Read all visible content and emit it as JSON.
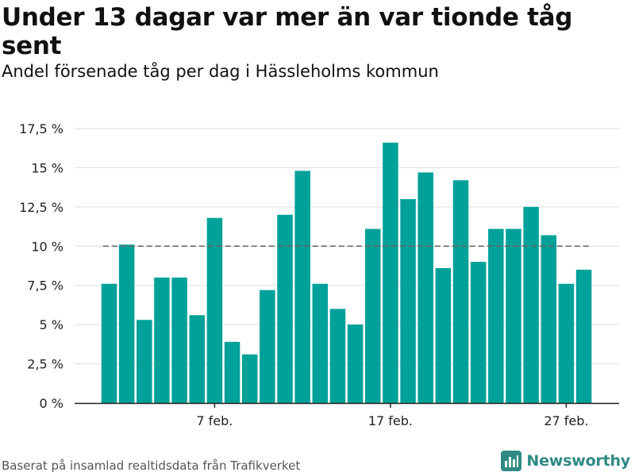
{
  "title": "Under 13 dagar var mer än var tionde tåg sent",
  "subtitle": "Andel försenade tåg per dag i Hässleholms kommun",
  "footer": {
    "source": "Baserat på insamlad realtidsdata från Trafikverket",
    "logo_text": "Newsworthy"
  },
  "colors": {
    "bar": "#00a199",
    "reference_line": "#666666",
    "grid": "#dddddd",
    "logo": "#2f8a84"
  },
  "chart_data": {
    "type": "bar",
    "categories": [
      "1 feb.",
      "2 feb.",
      "3 feb.",
      "4 feb.",
      "5 feb.",
      "6 feb.",
      "7 feb.",
      "8 feb.",
      "9 feb.",
      "10 feb.",
      "11 feb.",
      "12 feb.",
      "13 feb.",
      "14 feb.",
      "15 feb.",
      "16 feb.",
      "17 feb.",
      "18 feb.",
      "19 feb.",
      "20 feb.",
      "21 feb.",
      "22 feb.",
      "23 feb.",
      "24 feb.",
      "25 feb.",
      "26 feb.",
      "27 feb.",
      "28 feb."
    ],
    "values": [
      7.6,
      10.1,
      5.3,
      8.0,
      8.0,
      5.6,
      11.8,
      3.9,
      3.1,
      7.2,
      12.0,
      14.8,
      7.6,
      6.0,
      5.0,
      11.1,
      16.6,
      13.0,
      14.7,
      8.6,
      14.2,
      9.0,
      11.1,
      11.1,
      12.5,
      10.7,
      7.6,
      8.5
    ],
    "yticks": [
      {
        "value": 0,
        "label": "0 %"
      },
      {
        "value": 2.5,
        "label": "2,5 %"
      },
      {
        "value": 5,
        "label": "5 %"
      },
      {
        "value": 7.5,
        "label": "7,5 %"
      },
      {
        "value": 10,
        "label": "10 %"
      },
      {
        "value": 12.5,
        "label": "12,5 %"
      },
      {
        "value": 15,
        "label": "15 %"
      },
      {
        "value": 17.5,
        "label": "17,5 %"
      }
    ],
    "xticks": [
      {
        "index": 6,
        "label": "7 feb."
      },
      {
        "index": 16,
        "label": "17 feb."
      },
      {
        "index": 26,
        "label": "27 feb."
      }
    ],
    "reference_line": 10,
    "ylim": [
      0,
      17.5
    ],
    "grid": true,
    "xlabel": "",
    "ylabel": ""
  }
}
